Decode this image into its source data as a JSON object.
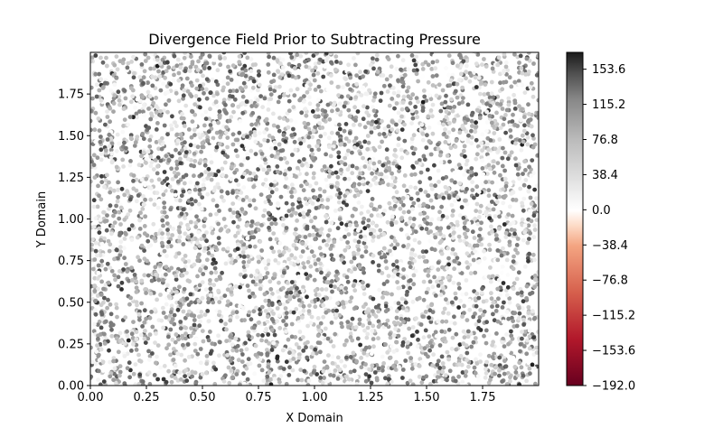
{
  "chart_data": {
    "type": "scatter",
    "title": "Divergence Field Prior to Subtracting Pressure",
    "xlabel": "X Domain",
    "ylabel": "Y Domain",
    "xlim": [
      0,
      2
    ],
    "ylim": [
      0,
      2
    ],
    "x_ticks": [
      "0.00",
      "0.25",
      "0.50",
      "0.75",
      "1.00",
      "1.25",
      "1.50",
      "1.75"
    ],
    "y_ticks": [
      "0.00",
      "0.25",
      "0.50",
      "0.75",
      "1.00",
      "1.25",
      "1.50",
      "1.75"
    ],
    "grid": false,
    "colorbar": {
      "min": -192.0,
      "max": 172.0,
      "ticks": [
        "153.6",
        "115.2",
        "76.8",
        "38.4",
        "0.0",
        "−38.4",
        "−76.8",
        "−115.2",
        "−153.6",
        "−192.0"
      ],
      "tick_values": [
        153.6,
        115.2,
        76.8,
        38.4,
        0.0,
        -38.4,
        -76.8,
        -115.2,
        -153.6,
        -192.0
      ],
      "colormap": "diverging red-white-gray",
      "colors": {
        "min": "#67001f",
        "low": "#d6604d",
        "mid_low": "#fddbc7",
        "zero": "#ffffff",
        "mid_high": "#bababa",
        "high": "#1a1a1a"
      }
    },
    "points": {
      "description_of_distribution": "dense uniform random scatter, values mostly positive",
      "count": 5200,
      "value_range": [
        0,
        172
      ]
    }
  }
}
